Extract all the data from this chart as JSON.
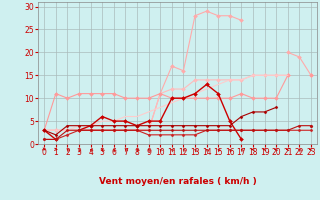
{
  "background_color": "#cff0f0",
  "grid_color": "#aabbbb",
  "xlabel": "Vent moyen/en rafales ( km/h )",
  "xlim": [
    -0.5,
    23.5
  ],
  "ylim": [
    0,
    31
  ],
  "yticks": [
    0,
    5,
    10,
    15,
    20,
    25,
    30
  ],
  "xticks": [
    0,
    1,
    2,
    3,
    4,
    5,
    6,
    7,
    8,
    9,
    10,
    11,
    12,
    13,
    14,
    15,
    16,
    17,
    18,
    19,
    20,
    21,
    22,
    23
  ],
  "series": [
    {
      "name": "light_pink_high",
      "x": [
        0,
        1,
        2,
        3,
        4,
        5,
        6,
        7,
        8,
        9,
        10,
        11,
        12,
        13,
        14,
        15,
        16,
        17,
        18,
        19,
        20,
        21,
        22,
        23
      ],
      "y": [
        3,
        3,
        3,
        3,
        3,
        3,
        3,
        3,
        3,
        3,
        11,
        17,
        16,
        28,
        29,
        28,
        28,
        27,
        null,
        null,
        null,
        20,
        19,
        15
      ],
      "color": "#ffaaaa",
      "lw": 0.8,
      "marker": "D",
      "ms": 2.0
    },
    {
      "name": "light_pink_trend",
      "x": [
        0,
        1,
        2,
        3,
        4,
        5,
        6,
        7,
        8,
        9,
        10,
        11,
        12,
        13,
        14,
        15,
        16,
        17,
        18,
        19,
        20,
        21,
        22,
        23
      ],
      "y": [
        3,
        3,
        3,
        3,
        3,
        3,
        3,
        3,
        3,
        3,
        11,
        12,
        12,
        14,
        14,
        14,
        14,
        14,
        15,
        15,
        15,
        15,
        null,
        15
      ],
      "color": "#ffbbbb",
      "lw": 0.8,
      "marker": "D",
      "ms": 2.0
    },
    {
      "name": "pink_flat_high",
      "x": [
        0,
        1,
        2,
        3,
        4,
        5,
        6,
        7,
        8,
        9,
        10,
        11,
        12,
        13,
        14,
        15,
        16,
        17,
        18,
        19,
        20,
        21,
        22,
        23
      ],
      "y": [
        3,
        11,
        10,
        11,
        11,
        11,
        11,
        10,
        10,
        10,
        11,
        10,
        10,
        10,
        10,
        10,
        10,
        11,
        10,
        10,
        10,
        15,
        null,
        15
      ],
      "color": "#ff9999",
      "lw": 0.8,
      "marker": "D",
      "ms": 2.0
    },
    {
      "name": "pink_diagonal",
      "x": [
        0,
        1,
        2,
        3,
        4,
        5,
        6,
        7,
        8,
        9,
        10,
        11,
        12,
        13,
        14,
        15,
        16,
        17,
        18,
        19,
        20,
        21,
        22,
        23
      ],
      "y": [
        3,
        3,
        3,
        4,
        4,
        5,
        5,
        6,
        6,
        7,
        8,
        9,
        10,
        11,
        12,
        13,
        14,
        14,
        15,
        15,
        15,
        15,
        null,
        15
      ],
      "color": "#ffcccc",
      "lw": 0.8,
      "marker": null,
      "ms": 0
    },
    {
      "name": "dark_red_peak",
      "x": [
        0,
        1,
        2,
        3,
        4,
        5,
        6,
        7,
        8,
        9,
        10,
        11,
        12,
        13,
        14,
        15,
        16,
        17,
        18,
        19,
        20,
        21,
        22,
        23
      ],
      "y": [
        3,
        1,
        null,
        3,
        4,
        6,
        5,
        5,
        4,
        5,
        5,
        10,
        10,
        11,
        13,
        11,
        5,
        1,
        null,
        null,
        null,
        8,
        null,
        null
      ],
      "color": "#cc0000",
      "lw": 1.0,
      "marker": "D",
      "ms": 2.0
    },
    {
      "name": "dark_flat_low1",
      "x": [
        0,
        1,
        2,
        3,
        4,
        5,
        6,
        7,
        8,
        9,
        10,
        11,
        12,
        13,
        14,
        15,
        16,
        17,
        18,
        19,
        20,
        21,
        22,
        23
      ],
      "y": [
        1,
        1,
        2,
        3,
        3,
        3,
        3,
        3,
        3,
        2,
        2,
        2,
        2,
        2,
        3,
        3,
        3,
        3,
        3,
        3,
        3,
        3,
        3,
        3
      ],
      "color": "#cc2222",
      "lw": 0.8,
      "marker": "D",
      "ms": 1.5
    },
    {
      "name": "dark_flat_low2",
      "x": [
        0,
        1,
        2,
        3,
        4,
        5,
        6,
        7,
        8,
        9,
        10,
        11,
        12,
        13,
        14,
        15,
        16,
        17,
        18,
        19,
        20,
        21,
        22,
        23
      ],
      "y": [
        3,
        2,
        4,
        4,
        4,
        4,
        4,
        4,
        4,
        4,
        4,
        4,
        4,
        4,
        4,
        4,
        4,
        6,
        7,
        7,
        8,
        null,
        null,
        4
      ],
      "color": "#aa0000",
      "lw": 0.8,
      "marker": "D",
      "ms": 1.5
    },
    {
      "name": "dark_flat_low3",
      "x": [
        0,
        1,
        2,
        3,
        4,
        5,
        6,
        7,
        8,
        9,
        10,
        11,
        12,
        13,
        14,
        15,
        16,
        17,
        18,
        19,
        20,
        21,
        22,
        23
      ],
      "y": [
        1,
        1,
        3,
        3,
        3,
        3,
        3,
        3,
        3,
        3,
        3,
        3,
        3,
        3,
        3,
        3,
        3,
        3,
        3,
        3,
        3,
        3,
        4,
        4
      ],
      "color": "#bb1111",
      "lw": 0.8,
      "marker": "D",
      "ms": 1.5
    }
  ],
  "arrow_angles": [
    45,
    70,
    -160,
    -170,
    -160,
    -160,
    -160,
    -160,
    -160,
    -160,
    -160,
    -160,
    -160,
    -160,
    -160,
    -160,
    -160,
    -160,
    -90,
    -90,
    -90,
    -90,
    -160,
    -90
  ],
  "tick_fontsize": 5.5,
  "label_fontsize": 6.5
}
